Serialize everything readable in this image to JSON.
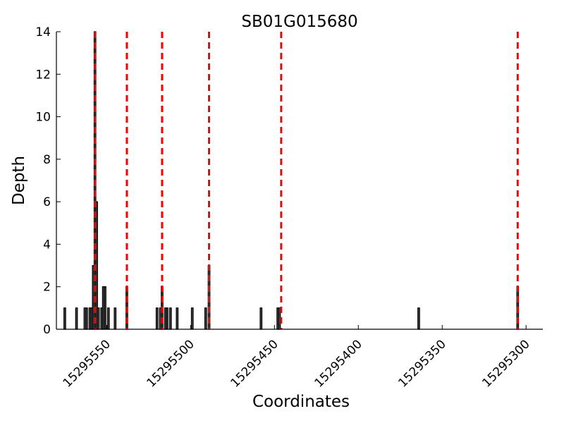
{
  "chart_data": {
    "type": "bar",
    "title": "SB01G015680",
    "xlabel": "Coordinates",
    "ylabel": "Depth",
    "x_reversed": true,
    "xlim": [
      15295580,
      15295290
    ],
    "ylim": [
      0,
      14
    ],
    "x_ticks": [
      15295550,
      15295500,
      15295450,
      15295400,
      15295350,
      15295300
    ],
    "x_tick_labels": [
      "15295550",
      "15295500",
      "15295450",
      "15295400",
      "15295350",
      "15295300"
    ],
    "y_ticks": [
      0,
      2,
      4,
      6,
      8,
      10,
      12,
      14
    ],
    "y_tick_labels": [
      "0",
      "2",
      "4",
      "6",
      "8",
      "10",
      "12",
      "14"
    ],
    "grid": false,
    "bar_color": "#000000",
    "bars": [
      {
        "x": 15295575,
        "depth": 1
      },
      {
        "x": 15295568,
        "depth": 1
      },
      {
        "x": 15295563,
        "depth": 1
      },
      {
        "x": 15295562,
        "depth": 1
      },
      {
        "x": 15295560,
        "depth": 1
      },
      {
        "x": 15295559,
        "depth": 1
      },
      {
        "x": 15295558,
        "depth": 3
      },
      {
        "x": 15295557,
        "depth": 14
      },
      {
        "x": 15295556,
        "depth": 6
      },
      {
        "x": 15295555,
        "depth": 1
      },
      {
        "x": 15295553,
        "depth": 1
      },
      {
        "x": 15295552,
        "depth": 2
      },
      {
        "x": 15295551,
        "depth": 2
      },
      {
        "x": 15295549,
        "depth": 1
      },
      {
        "x": 15295545,
        "depth": 1
      },
      {
        "x": 15295538,
        "depth": 2
      },
      {
        "x": 15295520,
        "depth": 1
      },
      {
        "x": 15295518,
        "depth": 1
      },
      {
        "x": 15295517,
        "depth": 2
      },
      {
        "x": 15295515,
        "depth": 1
      },
      {
        "x": 15295514,
        "depth": 1
      },
      {
        "x": 15295512,
        "depth": 1
      },
      {
        "x": 15295508,
        "depth": 1
      },
      {
        "x": 15295499,
        "depth": 1
      },
      {
        "x": 15295491,
        "depth": 1
      },
      {
        "x": 15295489,
        "depth": 3
      },
      {
        "x": 15295458,
        "depth": 1
      },
      {
        "x": 15295448,
        "depth": 1
      },
      {
        "x": 15295447,
        "depth": 1
      },
      {
        "x": 15295364,
        "depth": 1
      },
      {
        "x": 15295305,
        "depth": 2
      }
    ],
    "vlines": {
      "color": "#ff0000",
      "style": "dashed",
      "positions": [
        15295557,
        15295538,
        15295517,
        15295489,
        15295446,
        15295305
      ]
    }
  }
}
